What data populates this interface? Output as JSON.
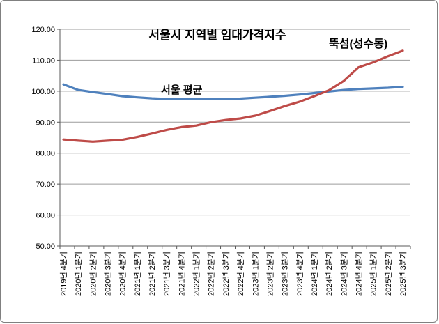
{
  "chart_data": {
    "type": "line",
    "title": "서울시 지역별 임대가격지수",
    "categories": [
      "2019년 4분기",
      "2020년 1분기",
      "2020년 2분기",
      "2020년 3분기",
      "2020년 4분기",
      "2021년 1분기",
      "2021년 2분기",
      "2021년 3분기",
      "2021년 4분기",
      "2022년 1분기",
      "2022년 2분기",
      "2022년 3분기",
      "2022년 4분기",
      "2023년 1분기",
      "2023년 2분기",
      "2023년 3분기",
      "2023년 4분기",
      "2024년 1분기",
      "2024년 2분기",
      "2024년 3분기",
      "2024년 4분기",
      "2025년 1분기",
      "2025년 2분기",
      "2025년 3분기"
    ],
    "series": [
      {
        "name": "서울 평균",
        "color": "#4F81BD",
        "values": [
          102.2,
          100.4,
          99.7,
          99.1,
          98.4,
          98.0,
          97.7,
          97.5,
          97.4,
          97.4,
          97.5,
          97.5,
          97.6,
          97.9,
          98.2,
          98.5,
          98.9,
          99.4,
          99.9,
          100.4,
          100.7,
          100.9,
          101.1,
          101.4
        ]
      },
      {
        "name": "뚝섬(성수동)",
        "color": "#BE4B48",
        "values": [
          84.4,
          84.0,
          83.7,
          84.0,
          84.3,
          85.2,
          86.3,
          87.5,
          88.4,
          88.9,
          90.0,
          90.7,
          91.2,
          92.1,
          93.6,
          95.2,
          96.6,
          98.4,
          100.3,
          103.3,
          107.7,
          109.3,
          111.3,
          113.1
        ]
      }
    ],
    "xlabel": "",
    "ylabel": "",
    "ylim": [
      50,
      120
    ],
    "ytick_step": 10,
    "ytick_labels": [
      "50.00",
      "60.00",
      "70.00",
      "80.00",
      "90.00",
      "100.00",
      "110.00",
      "120.00"
    ],
    "grid": "horizontal",
    "legend": "inline-labels",
    "x_label_rotation": -90
  },
  "colors": {
    "gridline": "#9C9C9C",
    "axis": "#595959",
    "tick_text": "#000000",
    "frame_border": "#808080",
    "background": "#FFFFFF"
  }
}
